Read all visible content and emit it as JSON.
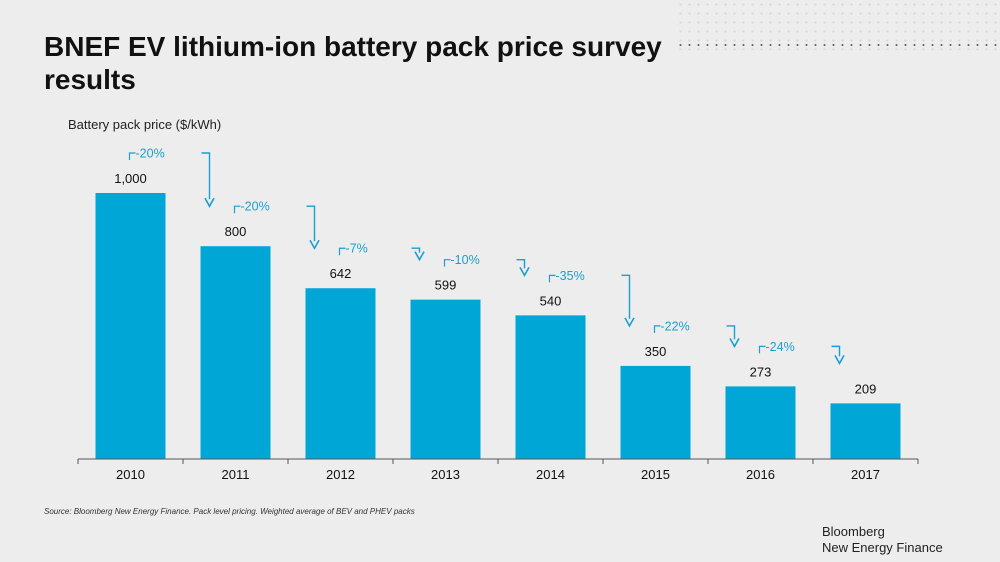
{
  "title": "BNEF EV lithium-ion battery pack price survey results",
  "footer": {
    "source": "Source: Bloomberg New Energy Finance. Pack level pricing. Weighted average of BEV and PHEV packs",
    "brand_line1": "Bloomberg",
    "brand_line2": "New Energy Finance"
  },
  "colors": {
    "bar": "#00a6d6",
    "arrow": "#1a9fd0",
    "background": "#ededed"
  },
  "chart_data": {
    "type": "bar",
    "title": "BNEF EV lithium-ion battery pack price survey results",
    "ylabel": "Battery pack price ($/kWh)",
    "xlabel": "",
    "categories": [
      "2010",
      "2011",
      "2012",
      "2013",
      "2014",
      "2015",
      "2016",
      "2017"
    ],
    "values": [
      1000,
      800,
      642,
      599,
      540,
      350,
      273,
      209
    ],
    "value_labels": [
      "1,000",
      "800",
      "642",
      "599",
      "540",
      "350",
      "273",
      "209"
    ],
    "changes": [
      "-20%",
      "-20%",
      "-7%",
      "-10%",
      "-35%",
      "-22%",
      "-24%"
    ],
    "ylim": [
      0,
      1000
    ],
    "grid": false,
    "legend": "none"
  }
}
